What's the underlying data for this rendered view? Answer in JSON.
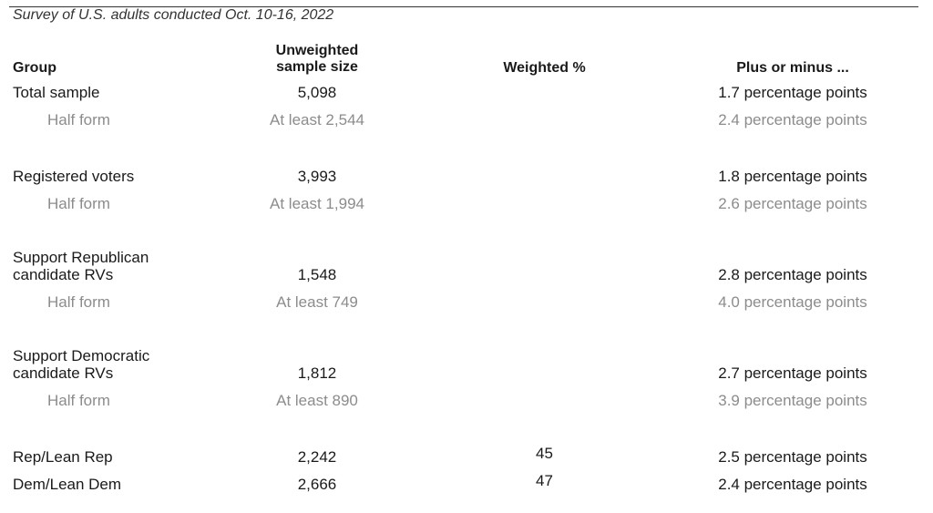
{
  "subtitle": "Survey of U.S. adults conducted Oct. 10-16, 2022",
  "headers": {
    "group": "Group",
    "sample_line1": "Unweighted",
    "sample_line2": "sample size",
    "weighted": "Weighted %",
    "plus_minus": "Plus or minus ..."
  },
  "rows": [
    {
      "group": "Total sample",
      "sample": "5,098",
      "weighted": "",
      "moe": "1.7 percentage points"
    },
    {
      "group": "Half form",
      "sample": "At least 2,544",
      "weighted": "",
      "moe": "2.4 percentage points"
    },
    {
      "group": "Registered voters",
      "sample": "3,993",
      "weighted": "",
      "moe": "1.8 percentage points"
    },
    {
      "group": "Half form",
      "sample": "At least 1,994",
      "weighted": "",
      "moe": "2.6 percentage points"
    },
    {
      "group_line1": "Support Republican",
      "group_line2": "candidate RVs",
      "sample": "1,548",
      "weighted": "",
      "moe": "2.8 percentage points"
    },
    {
      "group": "Half form",
      "sample": "At least 749",
      "weighted": "",
      "moe": "4.0 percentage points"
    },
    {
      "group_line1": "Support Democratic",
      "group_line2": "candidate RVs",
      "sample": "1,812",
      "weighted": "",
      "moe": "2.7 percentage points"
    },
    {
      "group": "Half form",
      "sample": "At least 890",
      "weighted": "",
      "moe": "3.9 percentage points"
    },
    {
      "group": "Rep/Lean Rep",
      "sample": "2,242",
      "weighted": "45",
      "moe": "2.5 percentage points"
    },
    {
      "group": "Dem/Lean Dem",
      "sample": "2,666",
      "weighted": "47",
      "moe": "2.4 percentage points"
    }
  ]
}
